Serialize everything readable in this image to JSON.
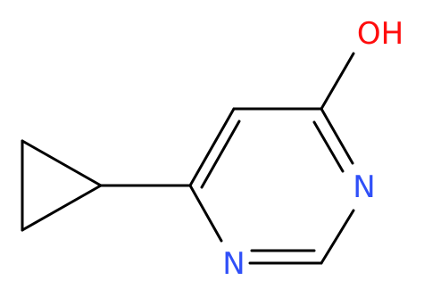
{
  "atoms": [
    {
      "label": "OH"
    },
    {
      "label": "N"
    },
    {
      "label": "N"
    }
  ]
}
